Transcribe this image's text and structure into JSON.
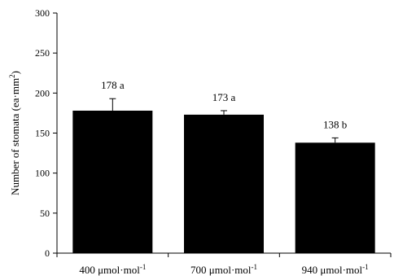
{
  "chart_data": {
    "type": "bar",
    "categories": [
      {
        "value": "400",
        "unit": "μmol·mol",
        "sup": "-1"
      },
      {
        "value": "700",
        "unit": "μmol·mol",
        "sup": "-1"
      },
      {
        "value": "940",
        "unit": "μmol·mol",
        "sup": "-1"
      }
    ],
    "values": [
      178,
      173,
      138
    ],
    "errors": [
      15,
      5,
      6
    ],
    "data_labels": [
      "178 a",
      "173 a",
      "138 b"
    ],
    "ylabel": {
      "text": "Number of stomata (ea·mm",
      "sup": "2",
      "suffix": ")"
    },
    "ylim": [
      0,
      300
    ],
    "yticks": [
      0,
      50,
      100,
      150,
      200,
      250,
      300
    ],
    "bar_color": "#000000",
    "grid": false,
    "legend": "none"
  }
}
